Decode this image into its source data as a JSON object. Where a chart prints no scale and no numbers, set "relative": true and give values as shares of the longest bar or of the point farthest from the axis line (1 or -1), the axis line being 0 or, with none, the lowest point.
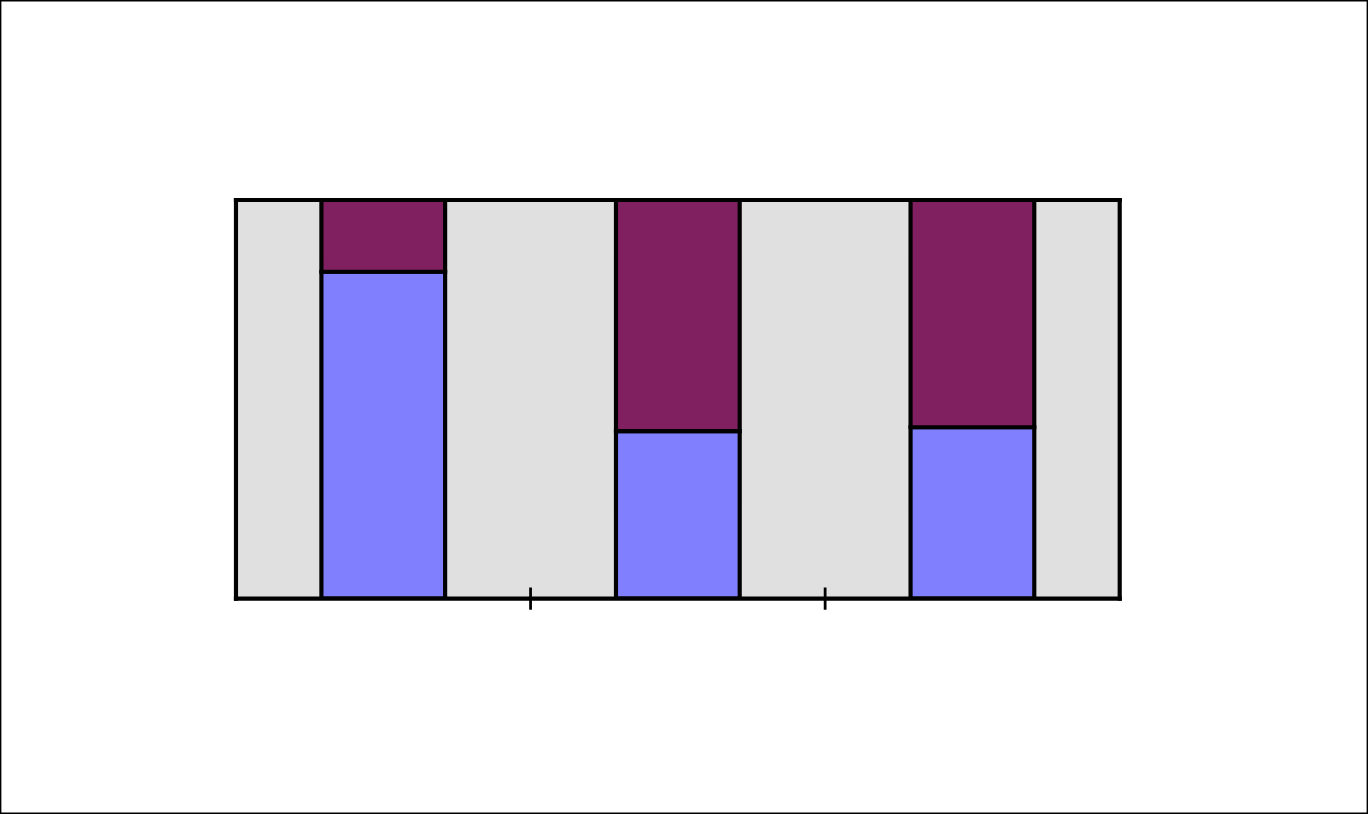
{
  "chart_data": {
    "type": "bar",
    "stacked": true,
    "relative": true,
    "categories": [
      null,
      null,
      null
    ],
    "series": [
      {
        "color": "#8080ff",
        "values": [
          0.82,
          0.42,
          0.43
        ]
      },
      {
        "color": "#802060",
        "values": [
          0.18,
          0.58,
          0.57
        ]
      }
    ]
  }
}
